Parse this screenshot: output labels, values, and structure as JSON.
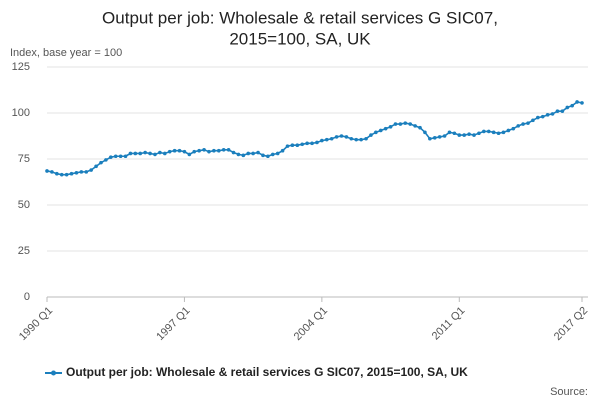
{
  "chart_data": {
    "type": "line",
    "title": [
      "Output per job: Wholesale & retail services G SIC07,",
      "2015=100, SA, UK"
    ],
    "y_axis_label": "Index, base year = 100",
    "source": "Source:",
    "categories": [
      "1990 Q1",
      null,
      null,
      null,
      null,
      null,
      null,
      null,
      null,
      null,
      null,
      null,
      null,
      null,
      null,
      null,
      null,
      null,
      null,
      null,
      null,
      null,
      null,
      null,
      null,
      null,
      null,
      null,
      "1997 Q1",
      null,
      null,
      null,
      null,
      null,
      null,
      null,
      null,
      null,
      null,
      null,
      null,
      null,
      null,
      null,
      null,
      null,
      null,
      null,
      null,
      null,
      null,
      null,
      null,
      null,
      null,
      null,
      "2004 Q1",
      null,
      null,
      null,
      null,
      null,
      null,
      null,
      null,
      null,
      null,
      null,
      null,
      null,
      null,
      null,
      null,
      null,
      null,
      null,
      null,
      null,
      null,
      null,
      null,
      null,
      null,
      null,
      "2011 Q1",
      null,
      null,
      null,
      null,
      null,
      null,
      null,
      null,
      null,
      null,
      null,
      null,
      null,
      null,
      null,
      null,
      null,
      null,
      null,
      null,
      null,
      null,
      null,
      null,
      "2017 Q2"
    ],
    "series": [
      {
        "name": "Output per job: Wholesale & retail services G SIC07, 2015=100, SA, UK",
        "color": "#1b7fbd",
        "values": [
          68.5,
          68,
          67,
          66.5,
          66.5,
          67,
          67.5,
          68,
          68,
          69,
          71,
          73,
          74.5,
          76,
          76.5,
          76.5,
          76.5,
          78,
          78,
          78,
          78.5,
          78,
          77.5,
          78.5,
          78,
          79,
          79.5,
          79.5,
          79,
          77.5,
          79,
          79.5,
          80,
          79,
          79.5,
          79.5,
          80,
          80,
          78.5,
          77.5,
          77,
          78,
          78,
          78.5,
          77,
          76.5,
          77.5,
          78,
          79.5,
          82,
          82.5,
          82.5,
          83,
          83.5,
          83.5,
          84,
          85,
          85.5,
          86,
          87,
          87.5,
          87,
          86,
          85.5,
          85.5,
          86,
          88,
          89.5,
          90.5,
          91.5,
          92.5,
          94,
          94,
          94.5,
          94,
          93,
          92,
          89.5,
          86,
          86.5,
          87,
          87.5,
          89.5,
          89,
          88,
          88,
          88.5,
          88,
          89,
          90,
          90,
          89.5,
          89,
          89.5,
          90.5,
          91.5,
          93,
          94,
          94.5,
          96,
          97.5,
          98,
          99,
          99.5,
          101,
          101,
          103,
          104,
          106,
          105.5
        ]
      }
    ],
    "ylim": [
      0,
      125
    ],
    "yticks": [
      0,
      25,
      50,
      75,
      100,
      125
    ],
    "grid": true
  }
}
